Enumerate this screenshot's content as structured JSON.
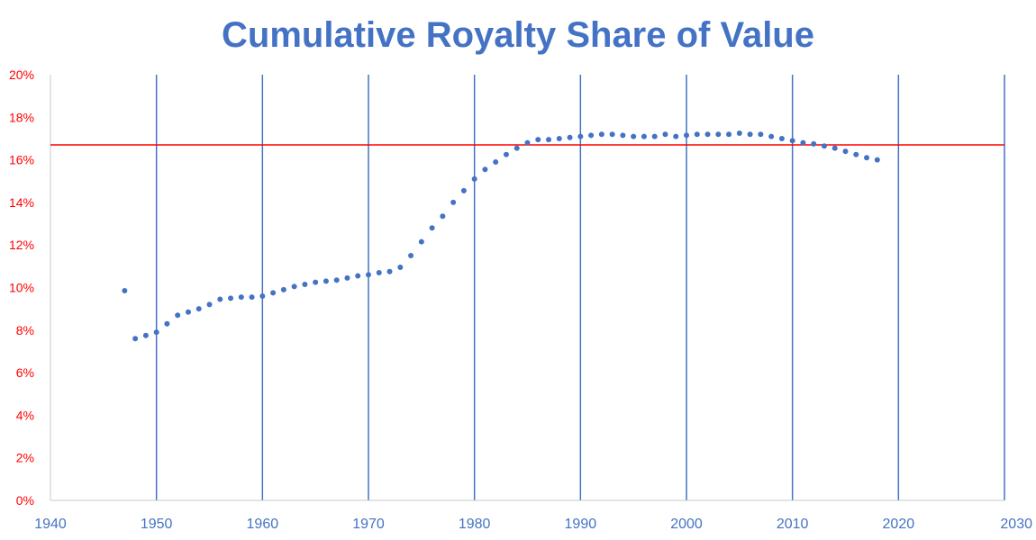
{
  "chart_data": {
    "type": "scatter",
    "title": "Cumulative Royalty Share of Value",
    "xlabel": "",
    "ylabel": "",
    "xlim": [
      1940,
      2030
    ],
    "ylim": [
      0,
      20
    ],
    "x_ticks": [
      "1940",
      "1950",
      "1960",
      "1970",
      "1980",
      "1990",
      "2000",
      "2010",
      "2020",
      "2030"
    ],
    "y_ticks": [
      "0%",
      "2%",
      "4%",
      "6%",
      "8%",
      "10%",
      "12%",
      "14%",
      "16%",
      "18%",
      "20%"
    ],
    "grid": "vertical",
    "reference_line": 16.7,
    "x": [
      1947,
      1948,
      1949,
      1950,
      1951,
      1952,
      1953,
      1954,
      1955,
      1956,
      1957,
      1958,
      1959,
      1960,
      1961,
      1962,
      1963,
      1964,
      1965,
      1966,
      1967,
      1968,
      1969,
      1970,
      1971,
      1972,
      1973,
      1974,
      1975,
      1976,
      1977,
      1978,
      1979,
      1980,
      1981,
      1982,
      1983,
      1984,
      1985,
      1986,
      1987,
      1988,
      1989,
      1990,
      1991,
      1992,
      1993,
      1994,
      1995,
      1996,
      1997,
      1998,
      1999,
      2000,
      2001,
      2002,
      2003,
      2004,
      2005,
      2006,
      2007,
      2008,
      2009,
      2010,
      2011,
      2012,
      2013,
      2014,
      2015,
      2016,
      2017,
      2018
    ],
    "values": [
      9.85,
      7.6,
      7.75,
      7.9,
      8.3,
      8.7,
      8.85,
      9.0,
      9.2,
      9.45,
      9.5,
      9.55,
      9.55,
      9.6,
      9.75,
      9.9,
      10.05,
      10.15,
      10.25,
      10.3,
      10.35,
      10.45,
      10.55,
      10.6,
      10.7,
      10.75,
      10.95,
      11.5,
      12.15,
      12.8,
      13.35,
      14.0,
      14.55,
      15.1,
      15.55,
      15.9,
      16.25,
      16.55,
      16.8,
      16.95,
      16.95,
      17.0,
      17.05,
      17.1,
      17.15,
      17.2,
      17.2,
      17.15,
      17.1,
      17.1,
      17.1,
      17.2,
      17.1,
      17.15,
      17.2,
      17.2,
      17.2,
      17.2,
      17.25,
      17.2,
      17.2,
      17.1,
      17.0,
      16.9,
      16.8,
      16.75,
      16.65,
      16.55,
      16.4,
      16.25,
      16.1,
      16.0
    ],
    "colors": {
      "title": "#4472C4",
      "points": "#4472C4",
      "grid": "#4472C4",
      "reference_line": "#FF0000",
      "y_ticks": "#FF0000",
      "x_ticks": "#4472C4",
      "axis": "#C8C8C8"
    }
  }
}
